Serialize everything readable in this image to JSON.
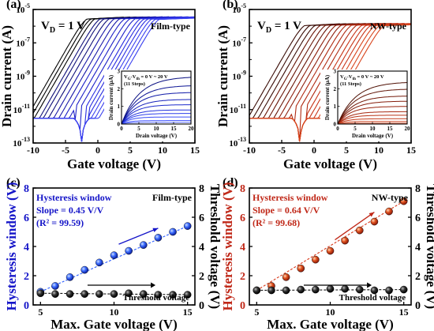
{
  "chart_data": [
    {
      "panel": "(a)",
      "type": "line",
      "annotation": "V_D = 1 V",
      "label": "Film-type",
      "xlabel": "Gate voltage (V)",
      "ylabel": "Drain current (A)",
      "xlim": [
        -10,
        15
      ],
      "xticks": [
        "-10",
        "-5",
        "0",
        "5",
        "10",
        "15"
      ],
      "yscale": "log",
      "ylim": [
        1e-13,
        1e-05
      ],
      "yticks": [
        {
          "base": "10",
          "exp": "-13"
        },
        {
          "base": "10",
          "exp": "-11"
        },
        {
          "base": "10",
          "exp": "-9"
        },
        {
          "base": "10",
          "exp": "-7"
        },
        {
          "base": "10",
          "exp": "-5"
        }
      ],
      "color_on": "#0000dd",
      "color_off": "#000000",
      "transfer_curves": {
        "count": 17,
        "vmax_list": [
          4,
          5,
          6,
          7,
          8,
          9,
          10,
          11,
          12,
          13,
          14,
          15,
          15,
          15,
          15,
          15,
          15
        ],
        "vth_list": [
          -1.8,
          -1.2,
          -0.6,
          0.2,
          0.8,
          1.6,
          2.4,
          3.2,
          4.0,
          4.8,
          5.6,
          6.4,
          7.0,
          7.6,
          8.2,
          8.8,
          9.4
        ],
        "off_level": 3e-12,
        "dip_voltage": -2.5,
        "sat_level": 5e-06
      },
      "inset": {
        "label": "V_G-V_th = 0 V ~ 20 V",
        "steps": "(11 Steps)",
        "xlabel": "Drain voltage (V)",
        "ylabel": "Drain current (µA)",
        "xlim": [
          0,
          20
        ],
        "xticks": [
          "0",
          "5",
          "10",
          "15",
          "20"
        ],
        "ylim": [
          0,
          3
        ],
        "yticks": [
          "0",
          "1",
          "2",
          "3"
        ],
        "curve_count": 11,
        "saturation_values": [
          0,
          0.1,
          0.2,
          0.4,
          0.6,
          0.8,
          1.1,
          1.4,
          1.8,
          2.2,
          2.7
        ]
      }
    },
    {
      "panel": "(b)",
      "type": "line",
      "annotation": "V_D = 1 V",
      "label": "NW-type",
      "xlabel": "Gate voltage (V)",
      "ylabel": "Drain current (A)",
      "xlim": [
        -10,
        15
      ],
      "xticks": [
        "-10",
        "-5",
        "0",
        "5",
        "10",
        "15"
      ],
      "yscale": "log",
      "ylim": [
        1e-13,
        1e-05
      ],
      "yticks": [
        {
          "base": "10",
          "exp": "-13"
        },
        {
          "base": "10",
          "exp": "-11"
        },
        {
          "base": "10",
          "exp": "-9"
        },
        {
          "base": "10",
          "exp": "-7"
        },
        {
          "base": "10",
          "exp": "-5"
        }
      ],
      "color_on": "#c02818",
      "color_off": "#2a0a06",
      "transfer_curves": {
        "count": 17,
        "vmax_list": [
          4,
          5,
          6,
          7,
          8,
          9,
          10,
          11,
          12,
          13,
          14,
          15,
          15,
          15,
          15,
          15,
          15
        ],
        "vth_list": [
          -1.6,
          -0.8,
          0.0,
          0.8,
          1.6,
          2.4,
          3.2,
          4.0,
          4.8,
          5.6,
          6.4,
          7.2,
          7.9,
          8.6,
          9.3,
          10.0,
          10.7
        ],
        "off_level": 3e-12,
        "dip_voltage": -2.2,
        "sat_level": 2e-06
      },
      "inset": {
        "label": "V_G-V_th = 0 V ~ 20 V",
        "steps": "(11 Steps)",
        "xlabel": "Drain voltage (V)",
        "ylabel": "Drain current (µA)",
        "xlim": [
          0,
          20
        ],
        "xticks": [
          "0",
          "5",
          "10",
          "15",
          "20"
        ],
        "ylim": [
          0,
          3
        ],
        "yticks": [
          "0",
          "1",
          "2",
          "3"
        ],
        "curve_count": 11,
        "saturation_values": [
          0,
          0.05,
          0.15,
          0.3,
          0.5,
          0.7,
          1.0,
          1.3,
          1.6,
          2.0,
          2.4
        ]
      }
    },
    {
      "panel": "(c)",
      "type": "scatter",
      "label": "Film-type",
      "legend_title": "Hysteresis window",
      "slope_text": "Slope = 0.45 V/V",
      "r2_text": "(R² = 99.59)",
      "threshold_label": "Threshold voltage",
      "xlabel": "Max. Gate voltage (V)",
      "ylabel_left": "Hysteresis window (V)",
      "ylabel_right": "Threshold voltage (V)",
      "xlim": [
        4.5,
        15.5
      ],
      "xticks": [
        "5",
        "10",
        "15"
      ],
      "ylim": [
        0,
        8
      ],
      "yticks": [
        "0",
        "2",
        "4",
        "6",
        "8"
      ],
      "accent": "#1515c8",
      "series": [
        {
          "name": "Hysteresis window",
          "color": "#2a5cff",
          "x": [
            5,
            6,
            7,
            8,
            9,
            10,
            11,
            12,
            13,
            14,
            15
          ],
          "y": [
            0.9,
            1.3,
            1.9,
            2.4,
            2.9,
            3.4,
            3.7,
            4.1,
            4.6,
            5.0,
            5.4
          ]
        },
        {
          "name": "Threshold voltage",
          "color": "#111111",
          "x": [
            5,
            6,
            7,
            8,
            9,
            10,
            11,
            12,
            13,
            14,
            15
          ],
          "y": [
            0.8,
            0.75,
            0.75,
            0.75,
            0.75,
            0.75,
            0.8,
            0.75,
            0.7,
            0.7,
            0.7
          ]
        }
      ]
    },
    {
      "panel": "(d)",
      "type": "scatter",
      "label": "NW-type",
      "legend_title": "Hysteresis window",
      "slope_text": "Slope = 0.64 V/V",
      "r2_text": "(R² = 99.68)",
      "threshold_label": "Threshold voltage",
      "xlabel": "Max. Gate voltage (V)",
      "ylabel_left": "Hysteresis window (V)",
      "ylabel_right": "Threshold voltage (V)",
      "xlim": [
        4.5,
        15.5
      ],
      "xticks": [
        "5",
        "10",
        "15"
      ],
      "ylim": [
        0,
        8
      ],
      "yticks": [
        "0",
        "2",
        "4",
        "6",
        "8"
      ],
      "accent": "#c02818",
      "series": [
        {
          "name": "Hysteresis window",
          "color": "#d83a1c",
          "x": [
            5,
            6,
            7,
            8,
            9,
            10,
            11,
            12,
            13,
            14,
            15
          ],
          "y": [
            1.0,
            1.3,
            1.9,
            2.5,
            3.1,
            3.7,
            4.4,
            5.1,
            5.7,
            6.4,
            7.1
          ]
        },
        {
          "name": "Threshold voltage",
          "color": "#111111",
          "x": [
            5,
            6,
            7,
            8,
            9,
            10,
            11,
            12,
            13,
            14,
            15
          ],
          "y": [
            1.0,
            1.0,
            1.0,
            1.05,
            1.05,
            1.1,
            1.1,
            1.05,
            1.0,
            1.0,
            1.05
          ]
        }
      ]
    }
  ]
}
